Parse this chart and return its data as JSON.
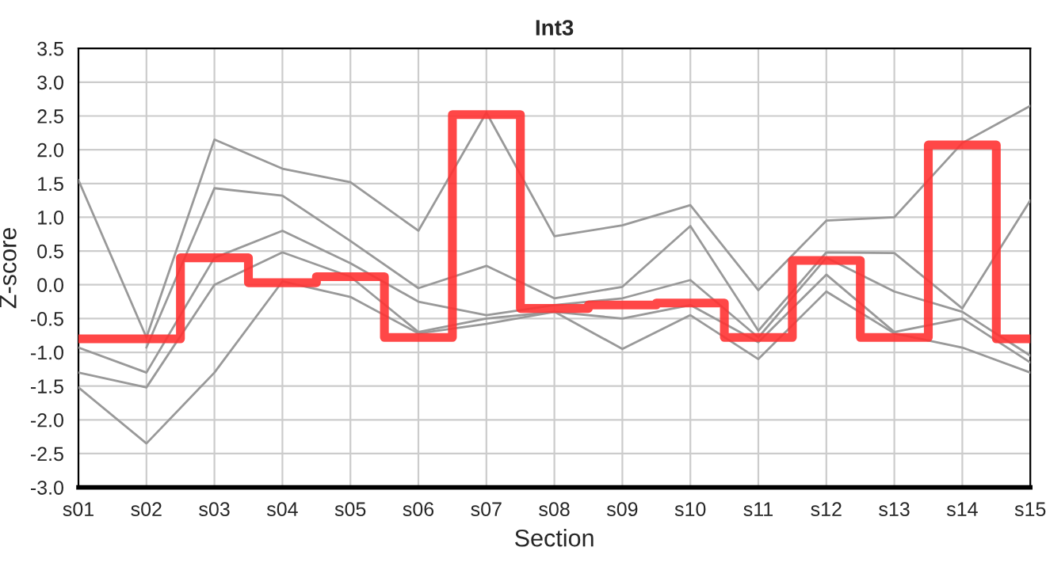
{
  "chart_data": {
    "type": "line",
    "title": "Int3",
    "xlabel": "Section",
    "ylabel": "Z-score",
    "categories": [
      "s01",
      "s02",
      "s03",
      "s04",
      "s05",
      "s06",
      "s07",
      "s08",
      "s09",
      "s10",
      "s11",
      "s12",
      "s13",
      "s14",
      "s15"
    ],
    "series": [
      {
        "color": "#999999",
        "values": [
          1.55,
          -0.78,
          2.15,
          1.72,
          1.52,
          0.8,
          2.55,
          0.72,
          0.88,
          1.18,
          -0.08,
          0.95,
          1.0,
          2.1,
          2.65
        ]
      },
      {
        "color": "#999999",
        "values": [
          null,
          -0.93,
          1.43,
          1.32,
          0.65,
          -0.05,
          0.28,
          -0.2,
          -0.03,
          0.87,
          -0.68,
          0.48,
          0.47,
          -0.35,
          1.25
        ]
      },
      {
        "color": "#999999",
        "values": [
          -0.93,
          -1.3,
          0.4,
          0.8,
          0.32,
          -0.25,
          -0.45,
          -0.3,
          -0.2,
          0.07,
          -0.78,
          0.4,
          -0.1,
          -0.4,
          -1.05
        ]
      },
      {
        "color": "#999999",
        "values": [
          -1.3,
          -1.52,
          0.0,
          0.48,
          0.12,
          -0.7,
          -0.5,
          -0.4,
          -0.5,
          -0.3,
          -0.85,
          0.15,
          -0.7,
          -0.5,
          -1.15
        ]
      },
      {
        "color": "#999999",
        "values": [
          -1.52,
          -2.35,
          -1.3,
          0.05,
          -0.18,
          -0.72,
          -0.58,
          -0.4,
          -0.95,
          -0.45,
          -1.1,
          -0.1,
          -0.72,
          -0.93,
          -1.3
        ]
      },
      {
        "color": "#ff3333",
        "type": "step",
        "values": [
          -0.8,
          -0.8,
          0.4,
          0.03,
          0.12,
          -0.78,
          2.52,
          -0.35,
          -0.3,
          -0.27,
          -0.78,
          0.36,
          -0.78,
          2.07,
          -0.8
        ]
      }
    ],
    "ylim": [
      -3.0,
      3.5
    ],
    "yticks": [
      {
        "value": -3,
        "label": "-3.0"
      },
      -2.5,
      {
        "value": -2,
        "label": "-2.0"
      },
      -1.5,
      {
        "value": -1,
        "label": "-1.0"
      },
      -0.5,
      {
        "value": 0,
        "label": "0.0"
      },
      0.5,
      {
        "value": 1,
        "label": "1.0"
      },
      1.5,
      {
        "value": 2,
        "label": "2.0"
      },
      2.5,
      {
        "value": 3,
        "label": "3.0"
      },
      3.5
    ],
    "grid": true,
    "legend": false
  }
}
